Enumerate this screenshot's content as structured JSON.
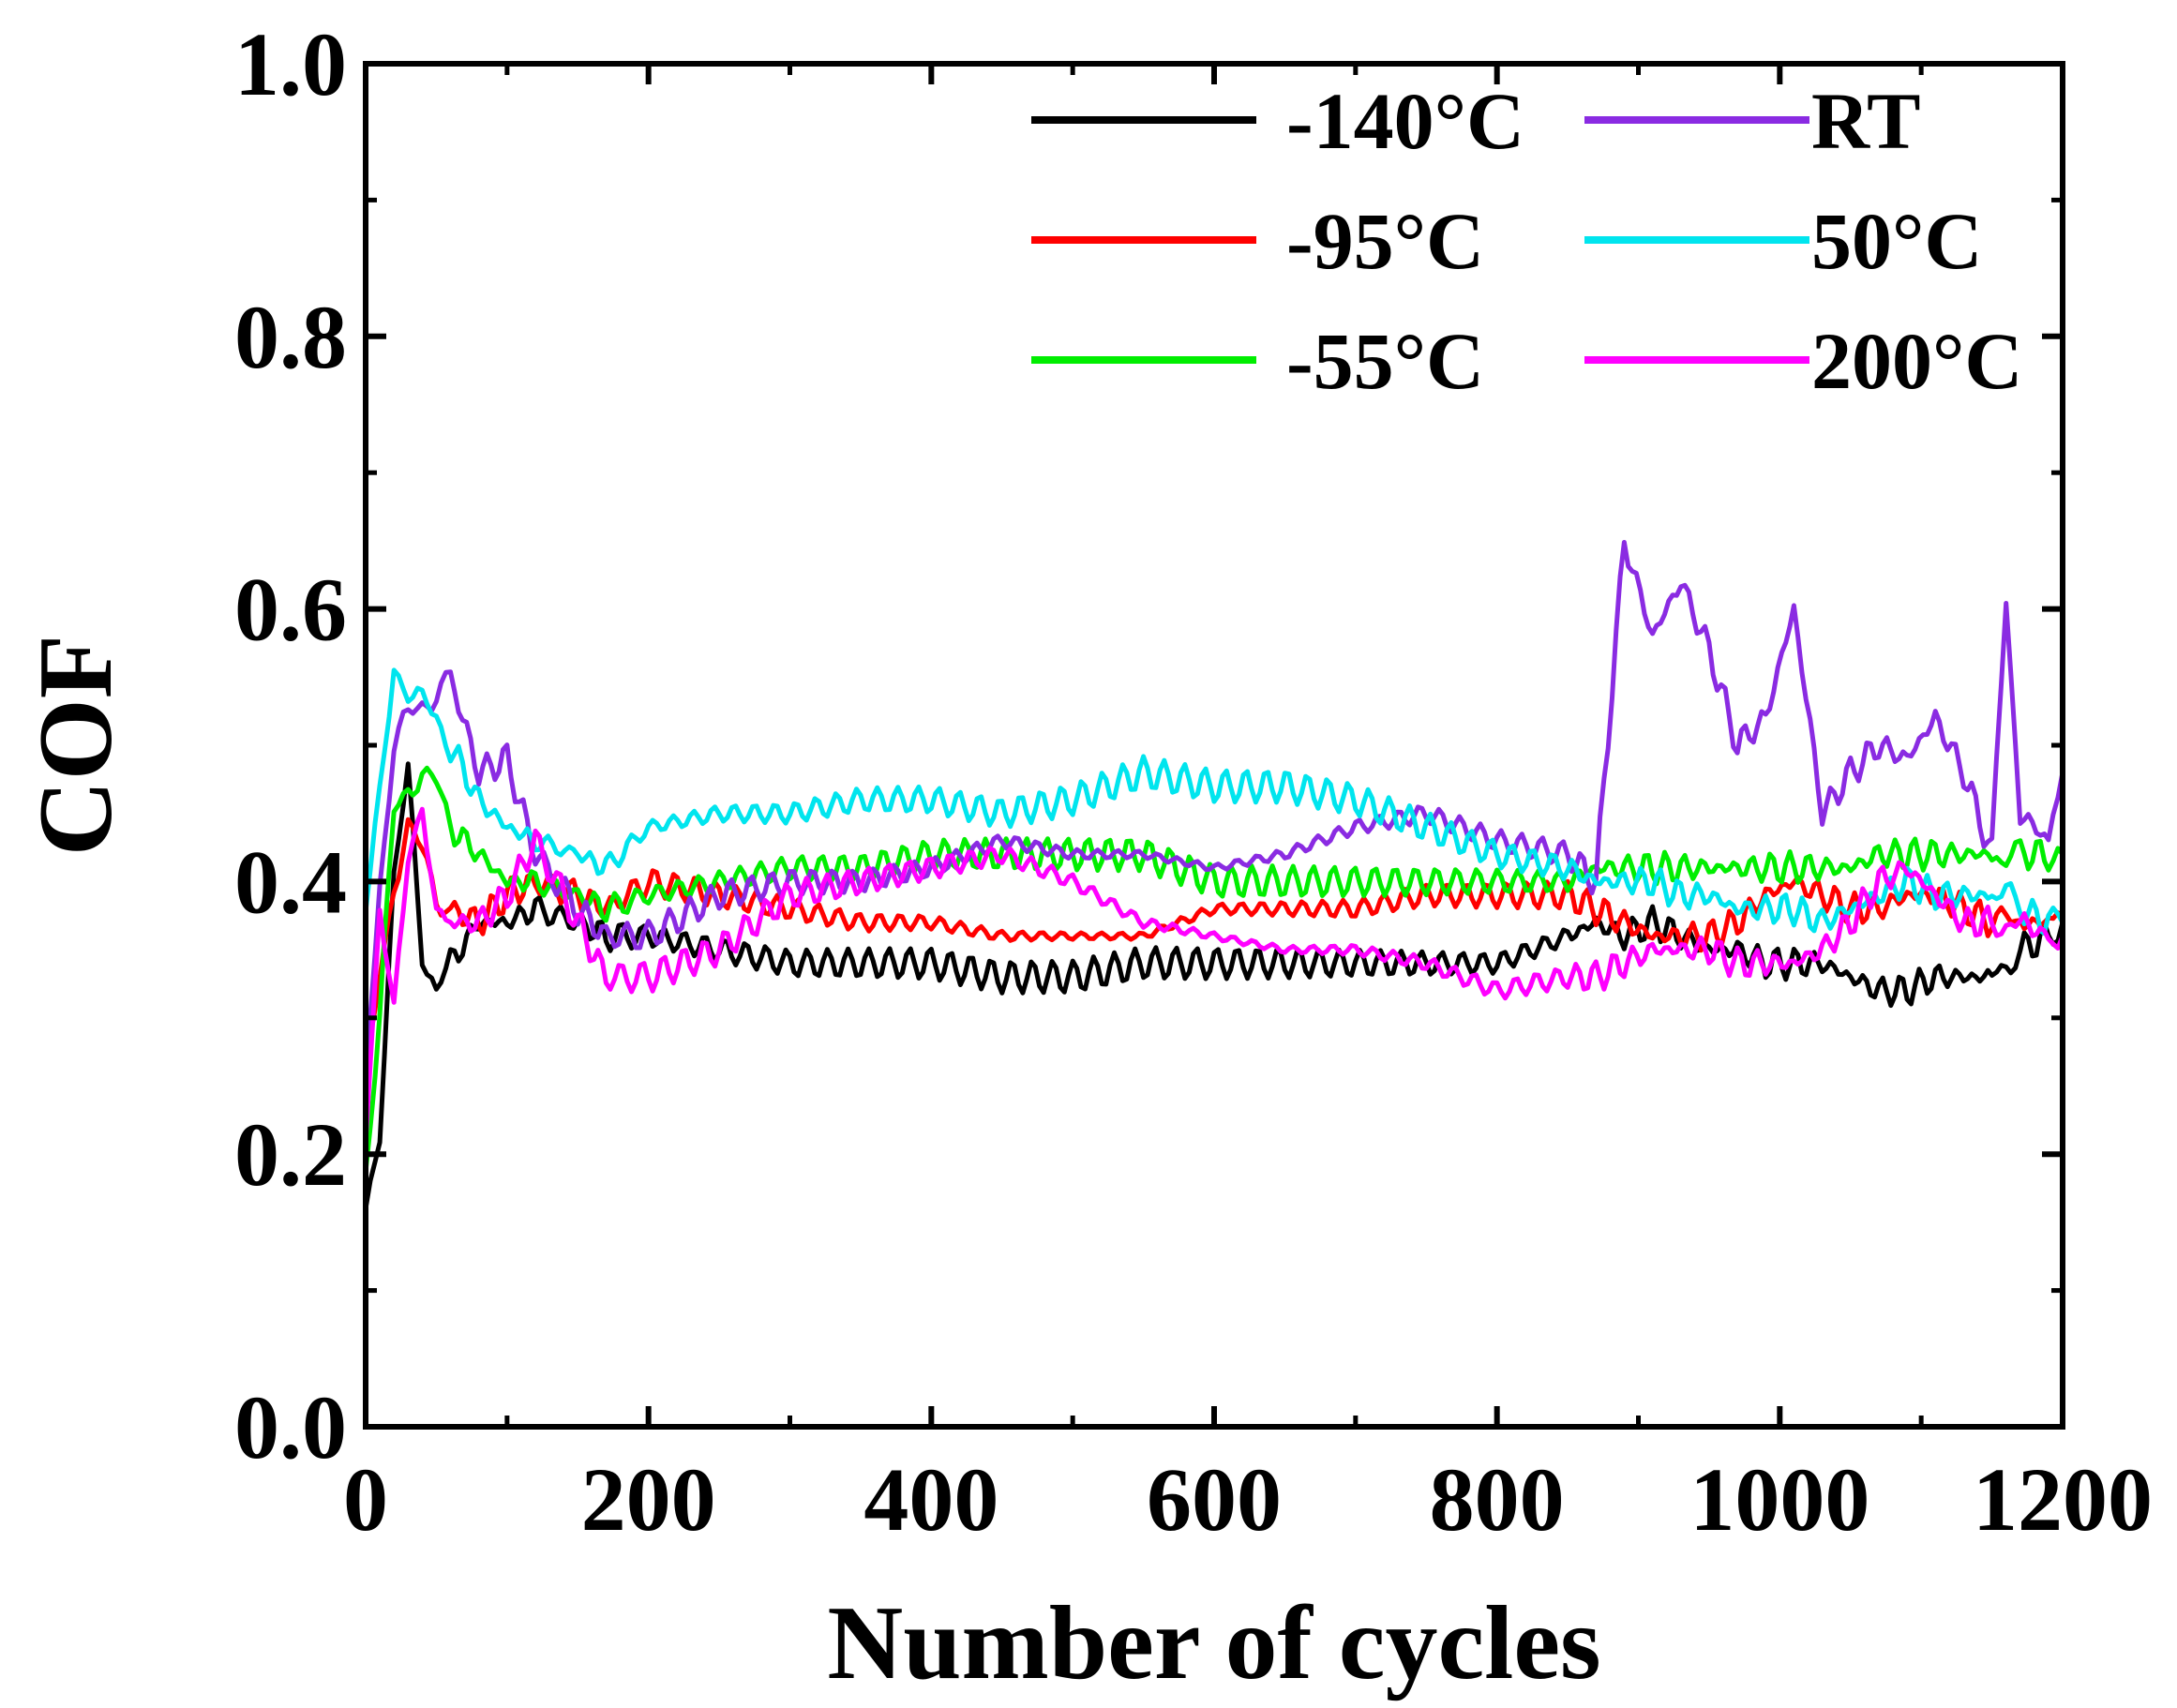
{
  "chart_data": {
    "type": "line",
    "title": "",
    "xlabel": "Number of cycles",
    "ylabel": "COF",
    "xlim": [
      0,
      1200
    ],
    "ylim": [
      0.0,
      1.0
    ],
    "xticks": [
      0,
      200,
      400,
      600,
      800,
      1000,
      1200
    ],
    "xtick_labels": [
      "0",
      "200",
      "400",
      "600",
      "800",
      "1000",
      "1200"
    ],
    "yticks": [
      0.0,
      0.2,
      0.4,
      0.6,
      0.8,
      1.0
    ],
    "ytick_labels": [
      "0.0",
      "0.2",
      "0.4",
      "0.6",
      "0.8",
      "1.0"
    ],
    "grid": false,
    "legend_position": "top-right",
    "x": [
      0,
      10,
      20,
      30,
      40,
      50,
      60,
      80,
      100,
      120,
      150,
      170,
      200,
      250,
      300,
      350,
      400,
      450,
      500,
      550,
      600,
      650,
      700,
      750,
      800,
      850,
      870,
      890,
      910,
      930,
      950,
      970,
      990,
      1010,
      1030,
      1050,
      1070,
      1090,
      1110,
      1130,
      1150,
      1160,
      1170,
      1190,
      1200
    ],
    "series": [
      {
        "name": "-140°C",
        "color": "#000000",
        "values": [
          0.16,
          0.22,
          0.4,
          0.48,
          0.35,
          0.32,
          0.34,
          0.37,
          0.37,
          0.38,
          0.37,
          0.36,
          0.36,
          0.35,
          0.34,
          0.34,
          0.34,
          0.33,
          0.33,
          0.34,
          0.34,
          0.34,
          0.34,
          0.34,
          0.34,
          0.36,
          0.37,
          0.36,
          0.37,
          0.36,
          0.35,
          0.35,
          0.34,
          0.34,
          0.34,
          0.33,
          0.32,
          0.32,
          0.33,
          0.33,
          0.33,
          0.34,
          0.35,
          0.36,
          0.37
        ]
      },
      {
        "name": "-95°C",
        "color": "#ff0000",
        "values": [
          0.25,
          0.33,
          0.4,
          0.44,
          0.42,
          0.39,
          0.38,
          0.37,
          0.39,
          0.4,
          0.39,
          0.38,
          0.4,
          0.39,
          0.38,
          0.37,
          0.37,
          0.36,
          0.36,
          0.36,
          0.38,
          0.38,
          0.38,
          0.39,
          0.39,
          0.39,
          0.38,
          0.37,
          0.36,
          0.36,
          0.36,
          0.37,
          0.39,
          0.4,
          0.39,
          0.38,
          0.38,
          0.39,
          0.39,
          0.38,
          0.37,
          0.37,
          0.37,
          0.37,
          0.37
        ]
      },
      {
        "name": "-55°C",
        "color": "#00ee00",
        "values": [
          0.19,
          0.3,
          0.45,
          0.47,
          0.48,
          0.47,
          0.44,
          0.42,
          0.4,
          0.4,
          0.39,
          0.38,
          0.39,
          0.4,
          0.41,
          0.41,
          0.42,
          0.42,
          0.42,
          0.42,
          0.4,
          0.4,
          0.4,
          0.4,
          0.4,
          0.4,
          0.41,
          0.41,
          0.41,
          0.41,
          0.41,
          0.41,
          0.41,
          0.41,
          0.41,
          0.41,
          0.42,
          0.42,
          0.42,
          0.42,
          0.42,
          0.42,
          0.42,
          0.42,
          0.42
        ]
      },
      {
        "name": "RT",
        "color": "#8a2be2",
        "values": [
          0.26,
          0.4,
          0.5,
          0.52,
          0.53,
          0.54,
          0.55,
          0.48,
          0.49,
          0.42,
          0.38,
          0.36,
          0.36,
          0.39,
          0.4,
          0.4,
          0.41,
          0.43,
          0.42,
          0.42,
          0.41,
          0.42,
          0.44,
          0.45,
          0.43,
          0.42,
          0.4,
          0.65,
          0.58,
          0.62,
          0.57,
          0.5,
          0.52,
          0.6,
          0.45,
          0.48,
          0.5,
          0.49,
          0.52,
          0.48,
          0.42,
          0.61,
          0.45,
          0.43,
          0.48
        ]
      },
      {
        "name": "50°C",
        "color": "#00e5ee",
        "values": [
          0.38,
          0.46,
          0.56,
          0.54,
          0.53,
          0.52,
          0.5,
          0.46,
          0.44,
          0.43,
          0.42,
          0.41,
          0.44,
          0.45,
          0.45,
          0.46,
          0.46,
          0.45,
          0.46,
          0.48,
          0.47,
          0.47,
          0.46,
          0.44,
          0.42,
          0.41,
          0.4,
          0.4,
          0.4,
          0.39,
          0.39,
          0.38,
          0.38,
          0.38,
          0.37,
          0.38,
          0.39,
          0.4,
          0.39,
          0.39,
          0.39,
          0.39,
          0.38,
          0.37,
          0.37
        ]
      },
      {
        "name": "200°C",
        "color": "#ff00ff",
        "values": [
          0.22,
          0.38,
          0.3,
          0.42,
          0.46,
          0.37,
          0.37,
          0.37,
          0.39,
          0.43,
          0.37,
          0.33,
          0.33,
          0.35,
          0.39,
          0.4,
          0.41,
          0.42,
          0.4,
          0.37,
          0.36,
          0.35,
          0.35,
          0.34,
          0.32,
          0.33,
          0.33,
          0.34,
          0.35,
          0.35,
          0.35,
          0.34,
          0.34,
          0.34,
          0.35,
          0.37,
          0.4,
          0.41,
          0.39,
          0.37,
          0.37,
          0.37,
          0.37,
          0.36,
          0.36
        ]
      }
    ]
  }
}
